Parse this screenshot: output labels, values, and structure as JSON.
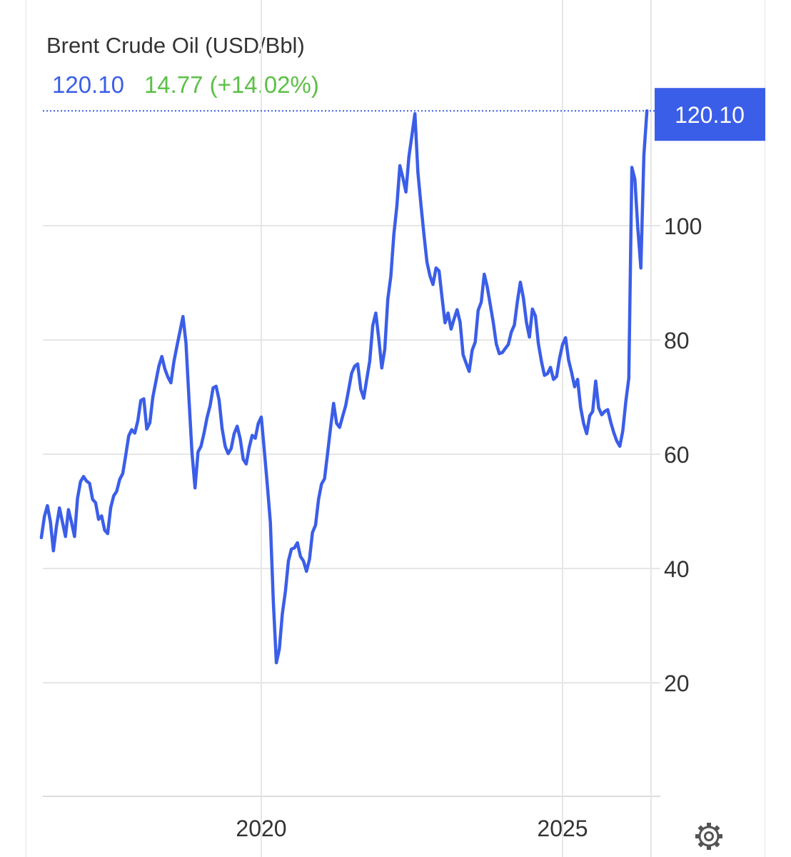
{
  "header": {
    "title": "Brent Crude Oil (USD/Bbl)",
    "price": "120.10",
    "change": "14.77 (+14.02%)"
  },
  "colors": {
    "line": "#3b5ee8",
    "positive": "#5cc047",
    "grid": "#e6e6e6",
    "text": "#333333"
  },
  "icons": {
    "settings": "gear-icon"
  },
  "chart_data": {
    "type": "line",
    "title": "Brent Crude Oil (USD/Bbl)",
    "xlabel": "",
    "ylabel": "",
    "ylim": [
      0,
      120.1
    ],
    "xlim": [
      2016.35,
      2026.4
    ],
    "grid": true,
    "x_ticks": [
      {
        "value": 2020,
        "label": "2020"
      },
      {
        "value": 2025,
        "label": "2025"
      }
    ],
    "y_ticks": [
      {
        "value": 20,
        "label": "20"
      },
      {
        "value": 40,
        "label": "40"
      },
      {
        "value": 60,
        "label": "60"
      },
      {
        "value": 80,
        "label": "80"
      },
      {
        "value": 100,
        "label": "100"
      }
    ],
    "last_value_label": "120.10",
    "series": [
      {
        "x": [
          2016.35,
          2016.4,
          2016.45,
          2016.5,
          2016.55,
          2016.6,
          2016.65,
          2016.7,
          2016.75,
          2016.8,
          2016.85,
          2016.9,
          2016.95,
          2017.0,
          2017.05,
          2017.1,
          2017.15,
          2017.2,
          2017.25,
          2017.3,
          2017.35,
          2017.4,
          2017.45,
          2017.5,
          2017.55,
          2017.6,
          2017.65,
          2017.7,
          2017.75,
          2017.8,
          2017.85,
          2017.9,
          2017.95,
          2018.0,
          2018.05,
          2018.1,
          2018.15,
          2018.2,
          2018.25,
          2018.3,
          2018.35,
          2018.4,
          2018.45,
          2018.5,
          2018.55,
          2018.6,
          2018.65,
          2018.7,
          2018.75,
          2018.8,
          2018.85,
          2018.9,
          2018.95,
          2019.0,
          2019.05,
          2019.1,
          2019.15,
          2019.2,
          2019.25,
          2019.3,
          2019.35,
          2019.4,
          2019.45,
          2019.5,
          2019.55,
          2019.6,
          2019.65,
          2019.7,
          2019.75,
          2019.8,
          2019.85,
          2019.9,
          2019.95,
          2020.0,
          2020.05,
          2020.1,
          2020.15,
          2020.2,
          2020.25,
          2020.3,
          2020.35,
          2020.4,
          2020.45,
          2020.5,
          2020.55,
          2020.6,
          2020.65,
          2020.7,
          2020.75,
          2020.8,
          2020.85,
          2020.9,
          2020.95,
          2021.0,
          2021.05,
          2021.1,
          2021.15,
          2021.2,
          2021.25,
          2021.3,
          2021.35,
          2021.4,
          2021.45,
          2021.5,
          2021.55,
          2021.6,
          2021.65,
          2021.7,
          2021.75,
          2021.8,
          2021.85,
          2021.9,
          2021.95,
          2022.0,
          2022.05,
          2022.1,
          2022.15,
          2022.2,
          2022.25,
          2022.3,
          2022.35,
          2022.4,
          2022.45,
          2022.5,
          2022.55,
          2022.6,
          2022.65,
          2022.7,
          2022.75,
          2022.8,
          2022.85,
          2022.9,
          2022.95,
          2023.0,
          2023.05,
          2023.1,
          2023.15,
          2023.2,
          2023.25,
          2023.3,
          2023.35,
          2023.4,
          2023.45,
          2023.5,
          2023.55,
          2023.6,
          2023.65,
          2023.7,
          2023.75,
          2023.8,
          2023.85,
          2023.9,
          2023.95,
          2024.0,
          2024.05,
          2024.1,
          2024.15,
          2024.2,
          2024.25,
          2024.3,
          2024.35,
          2024.4,
          2024.45,
          2024.5,
          2024.55,
          2024.6,
          2024.65,
          2024.7,
          2024.75,
          2024.8,
          2024.85,
          2024.9,
          2024.95,
          2025.0,
          2025.05,
          2025.1,
          2025.15,
          2025.2,
          2025.25,
          2025.3,
          2025.35,
          2025.4,
          2025.45,
          2025.5,
          2025.55,
          2025.6,
          2025.65,
          2025.7,
          2025.75,
          2025.8,
          2025.85,
          2025.9,
          2025.95,
          2026.0,
          2026.05,
          2026.1,
          2026.15,
          2026.2,
          2026.25,
          2026.3,
          2026.35,
          2026.4
        ],
        "y": [
          45.4,
          49.1,
          51.0,
          48.2,
          43.1,
          47.3,
          50.6,
          48.1,
          45.6,
          50.3,
          48.1,
          45.6,
          52.3,
          55.2,
          56.1,
          55.3,
          54.9,
          52.1,
          51.5,
          48.6,
          49.2,
          46.7,
          46.1,
          50.6,
          52.7,
          53.5,
          55.6,
          56.6,
          59.8,
          63.2,
          64.3,
          63.7,
          65.8,
          69.4,
          69.7,
          64.4,
          65.5,
          70.0,
          72.7,
          75.4,
          77.1,
          74.9,
          73.5,
          72.5,
          76.2,
          78.9,
          81.5,
          84.1,
          79.5,
          69.7,
          60.3,
          54.1,
          60.4,
          61.4,
          63.7,
          66.4,
          68.5,
          71.6,
          71.9,
          69.5,
          64.5,
          61.4,
          60.1,
          61.0,
          63.6,
          64.9,
          62.7,
          59.1,
          58.3,
          61.2,
          63.3,
          62.8,
          65.4,
          66.5,
          60.7,
          54.7,
          48.1,
          34.1,
          23.5,
          25.9,
          32.1,
          36.0,
          41.3,
          43.4,
          43.6,
          44.5,
          42.1,
          41.3,
          39.5,
          41.6,
          46.3,
          47.6,
          52.1,
          54.8,
          55.7,
          60.1,
          64.7,
          68.9,
          65.4,
          64.7,
          66.6,
          68.5,
          71.3,
          74.2,
          75.4,
          75.8,
          71.4,
          69.8,
          73.1,
          76.3,
          82.5,
          84.7,
          80.2,
          75.1,
          78.4,
          87.1,
          91.2,
          98.5,
          103.4,
          110.5,
          108.4,
          105.9,
          112.1,
          115.8,
          119.6,
          109.3,
          103.6,
          98.4,
          93.6,
          91.2,
          89.7,
          92.6,
          92.1,
          87.4,
          83.0,
          84.7,
          81.9,
          83.7,
          85.3,
          83.1,
          77.4,
          75.9,
          74.5,
          78.2,
          79.6,
          85.2,
          86.6,
          91.5,
          89.3,
          86.2,
          83.1,
          79.3,
          77.6,
          77.8,
          78.5,
          79.2,
          81.4,
          82.6,
          86.7,
          90.1,
          87.4,
          83.1,
          80.5,
          85.4,
          84.2,
          79.3,
          76.2,
          73.8,
          74.1,
          75.2,
          73.1,
          73.6,
          76.8,
          79.2,
          80.4,
          76.5,
          74.3,
          71.8,
          73.1,
          68.2,
          65.4,
          63.6,
          66.7,
          67.5,
          72.8,
          68.1,
          66.9,
          67.5,
          67.8,
          65.6,
          63.8,
          62.3,
          61.4,
          64.1,
          69.2,
          73.3,
          110.2,
          108.1,
          99.4,
          92.6,
          112.3,
          120.1
        ]
      }
    ]
  }
}
